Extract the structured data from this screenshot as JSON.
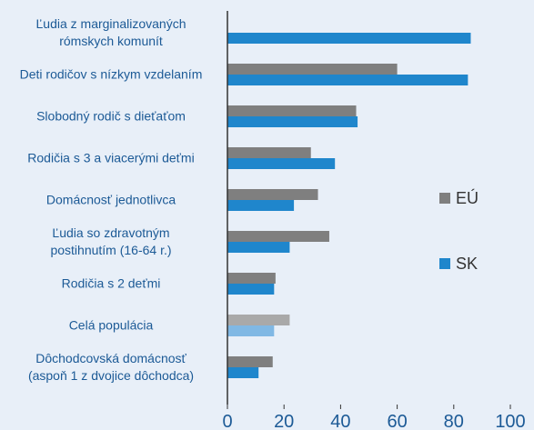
{
  "chart_data": {
    "type": "barh",
    "categories": [
      "Ľudia z marginalizovaných\nrómskych komunít",
      "Deti rodičov s nízkym vzdelaním",
      "Slobodný rodič s dieťaťom",
      "Rodičia s 3 a viacerými deťmi",
      "Domácnosť jednotlivca",
      "Ľudia so zdravotným\npostihnutím (16-64 r.)",
      "Rodičia s 2 deťmi",
      "Celá populácia",
      "Dôchodcovská domácnosť\n(aspoň 1 z dvojice dôchodca)"
    ],
    "series": [
      {
        "name": "EÚ",
        "color": "#7f7f7f",
        "colors": [
          "#7f7f7f",
          "#7f7f7f",
          "#7f7f7f",
          "#7f7f7f",
          "#7f7f7f",
          "#7f7f7f",
          "#7f7f7f",
          "#a9a9a9",
          "#7f7f7f"
        ],
        "values": [
          null,
          60,
          45.5,
          29.5,
          32,
          36,
          17,
          22,
          16
        ]
      },
      {
        "name": "SK",
        "color": "#1f86cc",
        "colors": [
          "#1f86cc",
          "#1f86cc",
          "#1f86cc",
          "#1f86cc",
          "#1f86cc",
          "#1f86cc",
          "#1f86cc",
          "#80b8e4",
          "#1f86cc"
        ],
        "values": [
          86,
          85,
          46,
          38,
          23.5,
          22,
          16.5,
          16.5,
          11
        ]
      }
    ],
    "xlim": [
      0,
      100
    ],
    "xticks": [
      0,
      20,
      40,
      60,
      80,
      100
    ],
    "grid": false,
    "legend": "right"
  }
}
